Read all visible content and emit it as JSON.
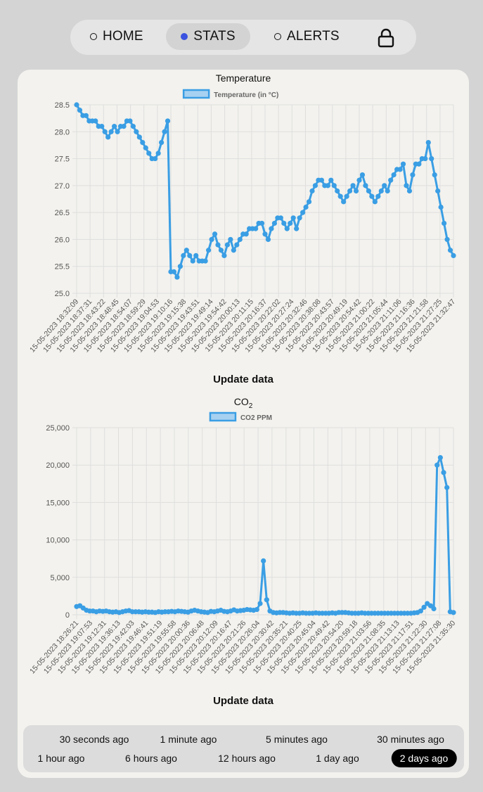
{
  "nav": {
    "items": [
      {
        "label": "HOME",
        "active": false
      },
      {
        "label": "STATS",
        "active": true
      },
      {
        "label": "ALERTS",
        "active": false
      }
    ],
    "lock_icon": "lock-icon",
    "active_dot_color": "#3b52e0"
  },
  "temperature": {
    "title": "Temperature",
    "update_label": "Update data",
    "chart_data": {
      "type": "line",
      "legend": "Temperature (in °C)",
      "legend_position": "top",
      "color": "#3a9ee4",
      "grid": true,
      "ylim": [
        25.0,
        28.5
      ],
      "yticks": [
        "25.0",
        "25.5",
        "26.0",
        "26.5",
        "27.0",
        "27.5",
        "28.0",
        "28.5"
      ],
      "xticks": [
        "15-05-2023 18:32:09",
        "15-05-2023 18:37:31",
        "15-05-2023 18:43:22",
        "15-05-2023 18:48:45",
        "15-05-2023 18:54:07",
        "15-05-2023 18:59:29",
        "15-05-2023 19:04:53",
        "15-05-2023 19:10:16",
        "15-05-2023 19:15:38",
        "15-05-2023 19:43:51",
        "15-05-2023 19:49:14",
        "15-05-2023 19:54:42",
        "15-05-2023 20:00:13",
        "15-05-2023 20:11:15",
        "15-05-2023 20:16:37",
        "15-05-2023 20:22:02",
        "15-05-2023 20:27:24",
        "15-05-2023 20:32:46",
        "15-05-2023 20:38:08",
        "15-05-2023 20:43:57",
        "15-05-2023 20:49:19",
        "15-05-2023 20:54:42",
        "15-05-2023 21:00:22",
        "15-05-2023 21:05:44",
        "15-05-2023 21:11:06",
        "15-05-2023 21:16:36",
        "15-05-2023 21:21:58",
        "15-05-2023 21:27:25",
        "15-05-2023 21:32:47"
      ],
      "values": [
        28.5,
        28.4,
        28.3,
        28.3,
        28.2,
        28.2,
        28.2,
        28.1,
        28.1,
        28.0,
        27.9,
        28.0,
        28.1,
        28.0,
        28.1,
        28.1,
        28.2,
        28.2,
        28.1,
        28.0,
        27.9,
        27.8,
        27.7,
        27.6,
        27.5,
        27.5,
        27.6,
        27.8,
        28.0,
        28.2,
        25.4,
        25.4,
        25.3,
        25.5,
        25.7,
        25.8,
        25.7,
        25.6,
        25.7,
        25.6,
        25.6,
        25.6,
        25.8,
        26.0,
        26.1,
        25.9,
        25.8,
        25.7,
        25.9,
        26.0,
        25.8,
        25.9,
        26.0,
        26.1,
        26.1,
        26.2,
        26.2,
        26.2,
        26.3,
        26.3,
        26.1,
        26.0,
        26.2,
        26.3,
        26.4,
        26.4,
        26.3,
        26.2,
        26.3,
        26.4,
        26.2,
        26.4,
        26.5,
        26.6,
        26.7,
        26.9,
        27.0,
        27.1,
        27.1,
        27.0,
        27.0,
        27.1,
        27.0,
        26.9,
        26.8,
        26.7,
        26.8,
        26.9,
        27.0,
        26.9,
        27.1,
        27.2,
        27.0,
        26.9,
        26.8,
        26.7,
        26.8,
        26.9,
        27.0,
        26.9,
        27.1,
        27.2,
        27.3,
        27.3,
        27.4,
        27.0,
        26.9,
        27.2,
        27.4,
        27.4,
        27.5,
        27.5,
        27.8,
        27.5,
        27.2,
        26.9,
        26.6,
        26.3,
        26.0,
        25.8,
        25.7
      ]
    }
  },
  "co2": {
    "title": "CO",
    "title_sub": "2",
    "update_label": "Update data",
    "chart_data": {
      "type": "line",
      "legend": "CO2 PPM",
      "legend_position": "top",
      "color": "#3a9ee4",
      "grid": true,
      "ylim": [
        0,
        25000
      ],
      "yticks": [
        "0",
        "5,000",
        "10,000",
        "15,000",
        "20,000",
        "25,000"
      ],
      "xticks": [
        "15-05-2023 18:26:21",
        "15-05-2023 19:07:53",
        "15-05-2023 19:12:31",
        "15-05-2023 19:36:13",
        "15-05-2023 19:42:03",
        "15-05-2023 19:46:41",
        "15-05-2023 19:51:19",
        "15-05-2023 19:55:58",
        "15-05-2023 20:00:36",
        "15-05-2023 20:06:48",
        "15-05-2023 20:12:09",
        "15-05-2023 20:16:47",
        "15-05-2023 20:21:26",
        "15-05-2023 20:26:04",
        "15-05-2023 20:30:42",
        "15-05-2023 20:35:21",
        "15-05-2023 20:40:25",
        "15-05-2023 20:45:04",
        "15-05-2023 20:49:42",
        "15-05-2023 20:54:20",
        "15-05-2023 20:59:18",
        "15-05-2023 21:03:56",
        "15-05-2023 21:08:35",
        "15-05-2023 21:13:13",
        "15-05-2023 21:17:51",
        "15-05-2023 21:22:30",
        "15-05-2023 21:27:08",
        "15-05-2023 21:35:30"
      ],
      "values": [
        1100,
        1200,
        900,
        600,
        500,
        500,
        400,
        500,
        450,
        500,
        400,
        350,
        400,
        300,
        400,
        500,
        550,
        400,
        400,
        400,
        350,
        400,
        350,
        350,
        300,
        400,
        350,
        400,
        400,
        450,
        400,
        500,
        450,
        400,
        350,
        500,
        600,
        500,
        400,
        350,
        300,
        450,
        400,
        500,
        600,
        450,
        400,
        500,
        650,
        500,
        550,
        600,
        700,
        650,
        600,
        700,
        1500,
        7200,
        2000,
        500,
        300,
        250,
        300,
        300,
        250,
        200,
        250,
        200,
        200,
        250,
        200,
        200,
        200,
        250,
        200,
        200,
        200,
        200,
        250,
        200,
        300,
        300,
        300,
        250,
        200,
        200,
        200,
        250,
        200,
        200,
        200,
        200,
        200,
        200,
        200,
        200,
        200,
        200,
        200,
        200,
        200,
        200,
        200,
        250,
        300,
        500,
        1000,
        1500,
        1200,
        800,
        20000,
        21000,
        19000,
        17000,
        400,
        300
      ]
    }
  },
  "range": {
    "options": [
      "30 seconds ago",
      "1 minute ago",
      "5 minutes ago",
      "30 minutes ago",
      "1 hour ago",
      "6 hours ago",
      "12 hours ago",
      "1 day ago",
      "2 days ago"
    ],
    "selected": "2 days ago"
  }
}
